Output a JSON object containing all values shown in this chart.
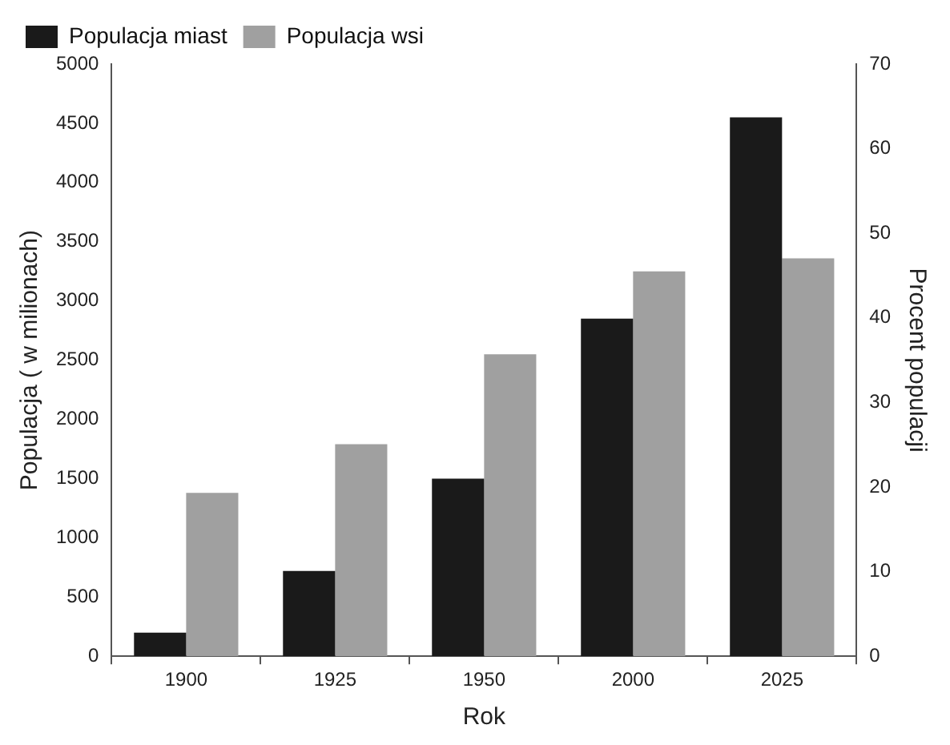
{
  "chart_data": {
    "type": "bar",
    "xlabel": "Rok",
    "ylabel": "Populacja ( w milionach)",
    "y2label": "Procent populacji",
    "categories": [
      "1900",
      "1925",
      "1950",
      "2000",
      "2025"
    ],
    "series": [
      {
        "name": "Populacja miast",
        "color": "#1a1a1a",
        "values": [
          200,
          720,
          1500,
          2850,
          4550
        ]
      },
      {
        "name": "Populacja wsi",
        "color": "#a0a0a0",
        "values": [
          1380,
          1790,
          2550,
          3250,
          3360
        ]
      }
    ],
    "ylim": [
      0,
      5000
    ],
    "yticks": [
      0,
      500,
      1000,
      1500,
      2000,
      2500,
      3000,
      3500,
      4000,
      4500,
      5000
    ],
    "y2lim": [
      0,
      70
    ],
    "y2ticks": [
      0,
      10,
      20,
      30,
      40,
      50,
      60,
      70
    ],
    "legend": "top left"
  }
}
